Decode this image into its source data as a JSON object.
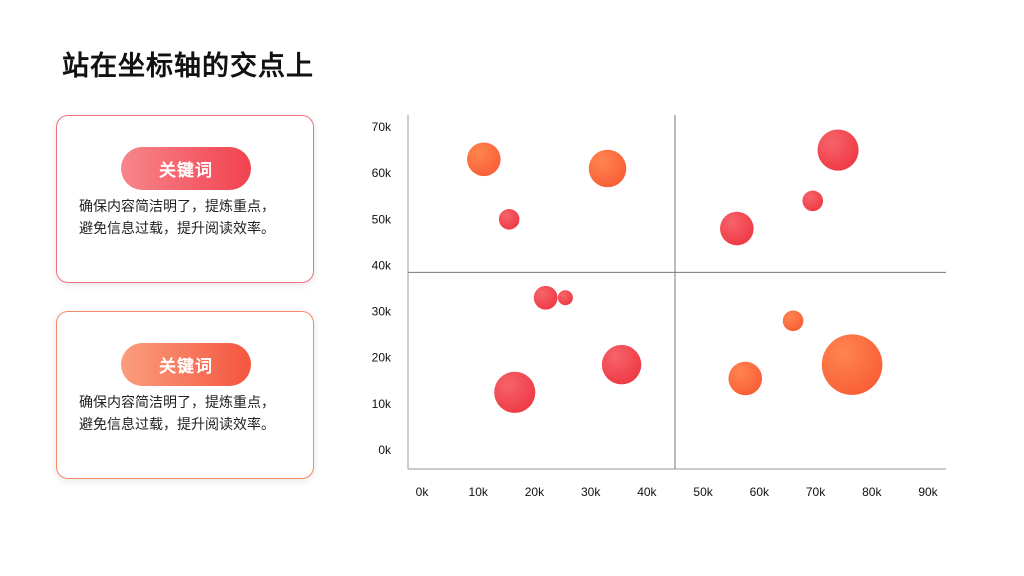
{
  "page": {
    "title": "站在坐标轴的交点上"
  },
  "cards": [
    {
      "badge": "关键词",
      "lines": [
        "确保内容简洁明了，提炼重点，",
        "避免信息过载，提升阅读效率。"
      ]
    },
    {
      "badge": "关键词",
      "lines": [
        "确保内容简洁明了，提炼重点，",
        "避免信息过载，提升阅读效率。"
      ]
    }
  ],
  "colors": {
    "red": "#f0434f",
    "orange": "#fb6a3b",
    "axis": "#999999"
  },
  "chart_data": {
    "type": "scatter",
    "title": "",
    "xlabel": "",
    "ylabel": "",
    "xlim": [
      0,
      90000
    ],
    "ylim": [
      0,
      70000
    ],
    "x_ticks": [
      0,
      10000,
      20000,
      30000,
      40000,
      50000,
      60000,
      70000,
      80000,
      90000
    ],
    "x_tick_labels": [
      "0k",
      "10k",
      "20k",
      "30k",
      "40k",
      "50k",
      "60k",
      "70k",
      "80k",
      "90k"
    ],
    "y_ticks": [
      0,
      10000,
      20000,
      30000,
      40000,
      50000,
      60000,
      70000
    ],
    "y_tick_labels": [
      "0k",
      "10k",
      "20k",
      "30k",
      "40k",
      "50k",
      "60k",
      "70k"
    ],
    "grid": false,
    "crosshair": {
      "x": 45000,
      "y": 38500
    },
    "points": [
      {
        "x": 11000,
        "y": 63000,
        "size": 4,
        "color": "orange"
      },
      {
        "x": 15500,
        "y": 50000,
        "size": 1.5,
        "color": "red"
      },
      {
        "x": 33000,
        "y": 61000,
        "size": 5,
        "color": "orange"
      },
      {
        "x": 74000,
        "y": 65000,
        "size": 6,
        "color": "red"
      },
      {
        "x": 69500,
        "y": 54000,
        "size": 1.5,
        "color": "red"
      },
      {
        "x": 56000,
        "y": 48000,
        "size": 4,
        "color": "red"
      },
      {
        "x": 22000,
        "y": 33000,
        "size": 2,
        "color": "red"
      },
      {
        "x": 25500,
        "y": 33000,
        "size": 0.8,
        "color": "red"
      },
      {
        "x": 16500,
        "y": 12500,
        "size": 6,
        "color": "red"
      },
      {
        "x": 35500,
        "y": 18500,
        "size": 5.5,
        "color": "red"
      },
      {
        "x": 66000,
        "y": 28000,
        "size": 1.5,
        "color": "orange"
      },
      {
        "x": 57500,
        "y": 15500,
        "size": 4,
        "color": "orange"
      },
      {
        "x": 76500,
        "y": 18500,
        "size": 13,
        "color": "orange"
      }
    ]
  }
}
